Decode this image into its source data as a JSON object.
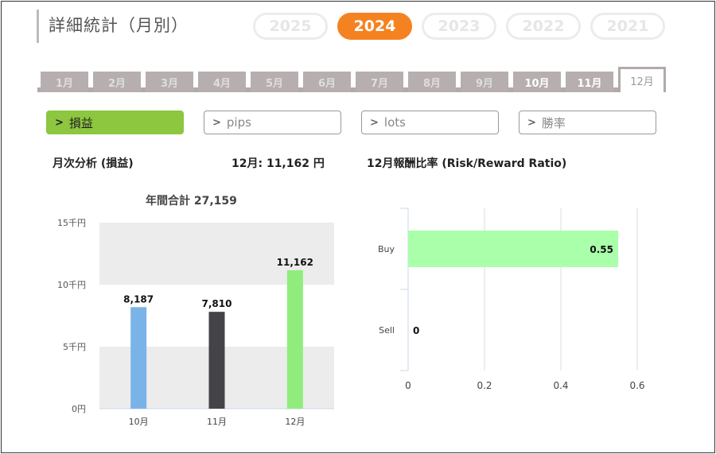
{
  "header": {
    "title": "詳細統計（月別）"
  },
  "years": [
    {
      "label": "2025",
      "active": false
    },
    {
      "label": "2024",
      "active": true
    },
    {
      "label": "2023",
      "active": false
    },
    {
      "label": "2022",
      "active": false
    },
    {
      "label": "2021",
      "active": false
    }
  ],
  "months": [
    {
      "label": "1月",
      "state": "dim"
    },
    {
      "label": "2月",
      "state": "dim"
    },
    {
      "label": "3月",
      "state": "dim"
    },
    {
      "label": "4月",
      "state": "dim"
    },
    {
      "label": "5月",
      "state": "dim"
    },
    {
      "label": "6月",
      "state": "dim"
    },
    {
      "label": "7月",
      "state": "dim"
    },
    {
      "label": "8月",
      "state": "dim"
    },
    {
      "label": "9月",
      "state": "dim"
    },
    {
      "label": "10月",
      "state": "bold"
    },
    {
      "label": "11月",
      "state": "bold"
    },
    {
      "label": "12月",
      "state": "active"
    }
  ],
  "metrics": [
    {
      "label": "損益",
      "active": true
    },
    {
      "label": "pips",
      "active": false
    },
    {
      "label": "lots",
      "active": false
    },
    {
      "label": "勝率",
      "active": false
    }
  ],
  "summary": {
    "monthly_label": "月次分析 (損益)",
    "month_value": "12月:  11,162 円",
    "rr_label": "12月報酬比率 (Risk/Reward Ratio)",
    "annual_total": "年間合計 27,159"
  },
  "chart_data": [
    {
      "type": "bar",
      "title": "年間合計 27,159",
      "categories": [
        "10月",
        "11月",
        "12月"
      ],
      "values": [
        8187,
        7810,
        11162
      ],
      "data_labels": [
        "8,187",
        "7,810",
        "11,162"
      ],
      "colors": [
        "#7ab3e8",
        "#434348",
        "#90ed7d"
      ],
      "yticks": [
        {
          "value": 0,
          "label": "0円"
        },
        {
          "value": 5000,
          "label": "5千円"
        },
        {
          "value": 10000,
          "label": "10千円"
        },
        {
          "value": 15000,
          "label": "15千円"
        }
      ],
      "ylim": [
        0,
        15000
      ],
      "grid": true
    },
    {
      "type": "bar",
      "orientation": "horizontal",
      "categories": [
        "Buy",
        "Sell"
      ],
      "values": [
        0.55,
        0
      ],
      "data_labels": [
        "0.55",
        "0"
      ],
      "colors": [
        "#aaffaa",
        "#aaffaa"
      ],
      "xticks": [
        "0",
        "0.2",
        "0.4",
        "0.6"
      ],
      "xlim": [
        0,
        0.6
      ],
      "grid": true
    }
  ]
}
